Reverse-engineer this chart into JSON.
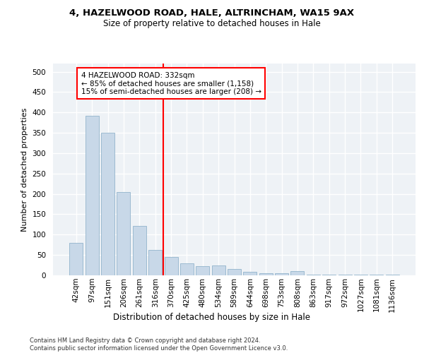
{
  "title_line1": "4, HAZELWOOD ROAD, HALE, ALTRINCHAM, WA15 9AX",
  "title_line2": "Size of property relative to detached houses in Hale",
  "xlabel": "Distribution of detached houses by size in Hale",
  "ylabel": "Number of detached properties",
  "footnote": "Contains HM Land Registry data © Crown copyright and database right 2024.\nContains public sector information licensed under the Open Government Licence v3.0.",
  "bar_color": "#c8d8e8",
  "bar_edgecolor": "#92b4cc",
  "background_color": "#eef2f6",
  "grid_color": "#ffffff",
  "categories": [
    "42sqm",
    "97sqm",
    "151sqm",
    "206sqm",
    "261sqm",
    "316sqm",
    "370sqm",
    "425sqm",
    "480sqm",
    "534sqm",
    "589sqm",
    "644sqm",
    "698sqm",
    "753sqm",
    "808sqm",
    "863sqm",
    "917sqm",
    "972sqm",
    "1027sqm",
    "1081sqm",
    "1136sqm"
  ],
  "values": [
    80,
    392,
    350,
    205,
    122,
    62,
    45,
    30,
    22,
    25,
    15,
    8,
    6,
    6,
    10,
    1,
    1,
    1,
    1,
    1,
    1
  ],
  "red_line_index": 5,
  "annotation_line1": "4 HAZELWOOD ROAD: 332sqm",
  "annotation_line2": "← 85% of detached houses are smaller (1,158)",
  "annotation_line3": "15% of semi-detached houses are larger (208) →",
  "ylim": [
    0,
    520
  ],
  "yticks": [
    0,
    50,
    100,
    150,
    200,
    250,
    300,
    350,
    400,
    450,
    500
  ],
  "title1_fontsize": 9.5,
  "title2_fontsize": 8.5,
  "ylabel_fontsize": 8,
  "xlabel_fontsize": 8.5,
  "tick_fontsize": 7.5,
  "annot_fontsize": 7.5
}
